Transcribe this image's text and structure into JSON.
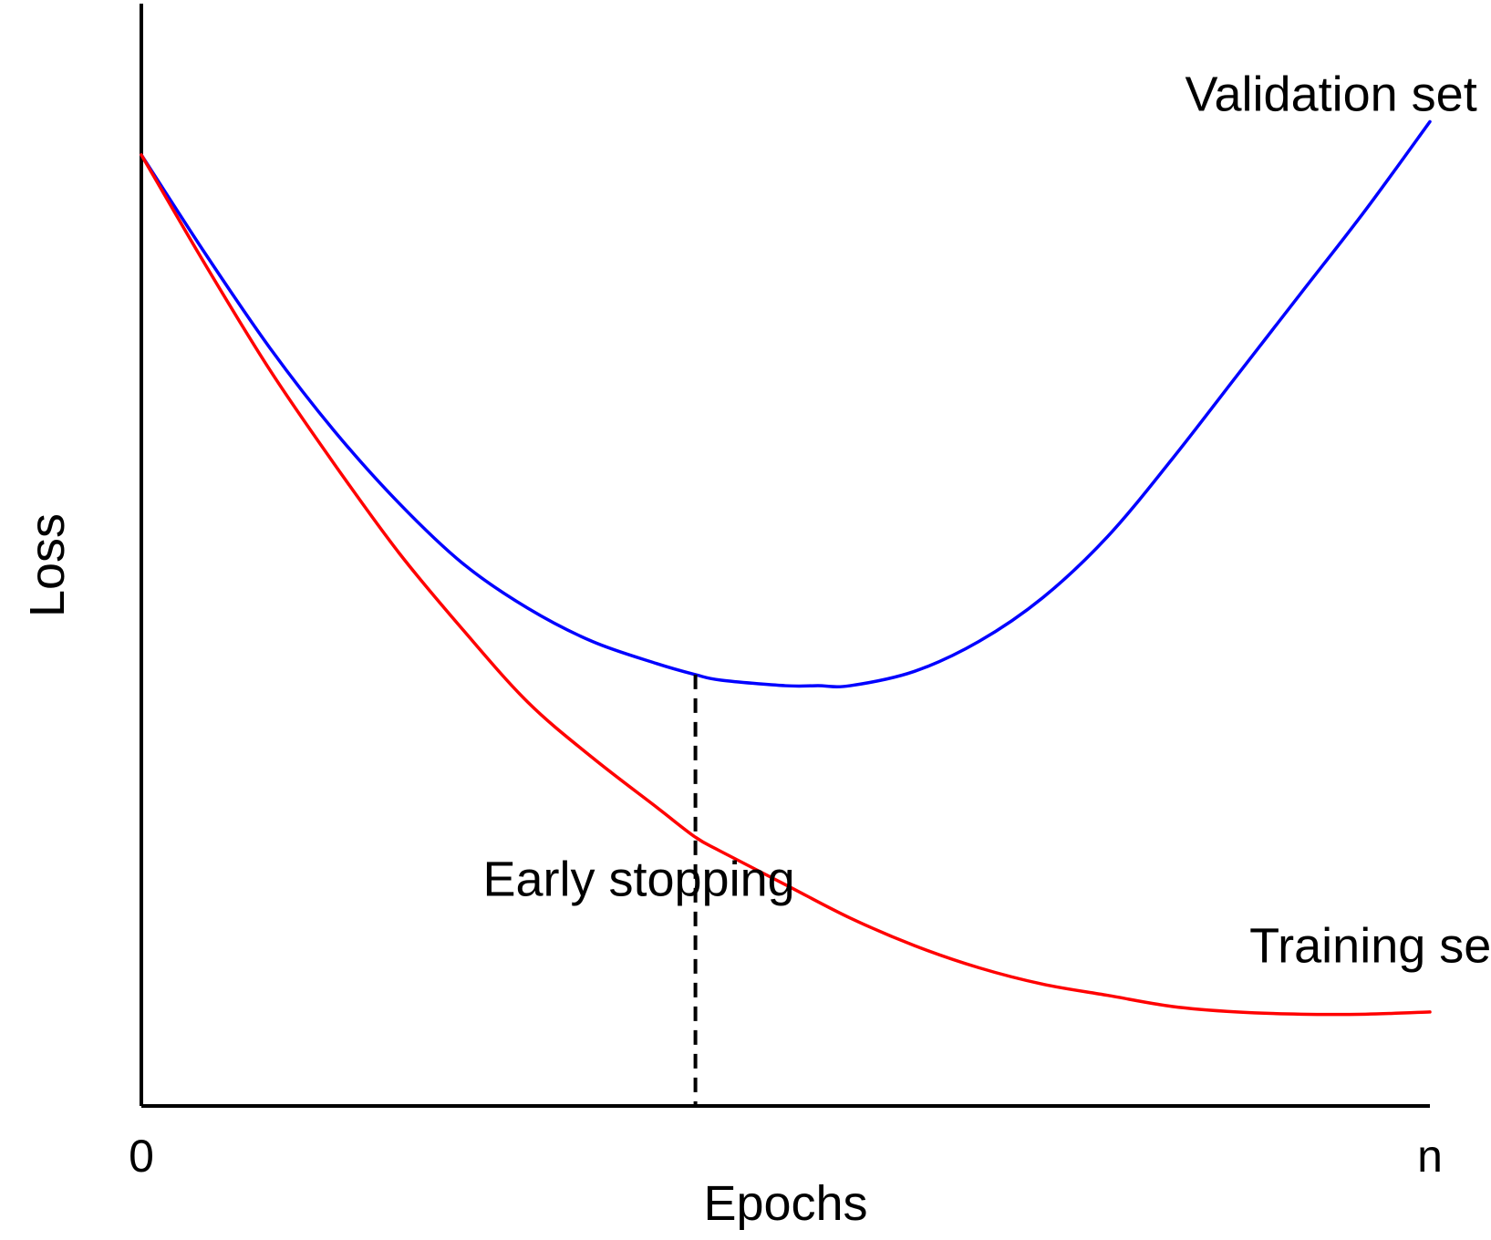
{
  "chart_data": {
    "type": "line",
    "title": "",
    "xlabel": "Epochs",
    "ylabel": "Loss",
    "x_tick_labels": [
      "0",
      "n"
    ],
    "xlim": [
      0,
      1
    ],
    "ylim": [
      0,
      1
    ],
    "grid": false,
    "legend": "none",
    "series": [
      {
        "name": "Validation set",
        "color": "#0000ff",
        "x": [
          0,
          0.05,
          0.1,
          0.15,
          0.2,
          0.25,
          0.3,
          0.35,
          0.4,
          0.43,
          0.45,
          0.5,
          0.525,
          0.55,
          0.6,
          0.65,
          0.7,
          0.75,
          0.8,
          0.85,
          0.9,
          0.95,
          1.0
        ],
        "y": [
          0.86,
          0.77,
          0.685,
          0.61,
          0.545,
          0.49,
          0.45,
          0.42,
          0.4,
          0.39,
          0.385,
          0.38,
          0.38,
          0.38,
          0.393,
          0.42,
          0.46,
          0.515,
          0.585,
          0.66,
          0.735,
          0.81,
          0.89
        ]
      },
      {
        "name": "Training set",
        "color": "#ff0000",
        "x": [
          0,
          0.05,
          0.1,
          0.15,
          0.2,
          0.25,
          0.3,
          0.35,
          0.4,
          0.43,
          0.45,
          0.5,
          0.55,
          0.6,
          0.65,
          0.7,
          0.75,
          0.8,
          0.85,
          0.9,
          0.95,
          1.0
        ],
        "y": [
          0.86,
          0.76,
          0.665,
          0.58,
          0.5,
          0.43,
          0.365,
          0.315,
          0.27,
          0.243,
          0.23,
          0.2,
          0.17,
          0.145,
          0.125,
          0.11,
          0.1,
          0.09,
          0.085,
          0.083,
          0.083,
          0.085
        ]
      }
    ],
    "annotations": [
      {
        "text": "Validation set",
        "x": 0.81,
        "y": 0.9
      },
      {
        "text": "Training set",
        "x": 0.86,
        "y": 0.13
      },
      {
        "text": "Early stopping",
        "x": 0.265,
        "y": 0.19
      }
    ],
    "early_stopping_x": 0.43
  }
}
